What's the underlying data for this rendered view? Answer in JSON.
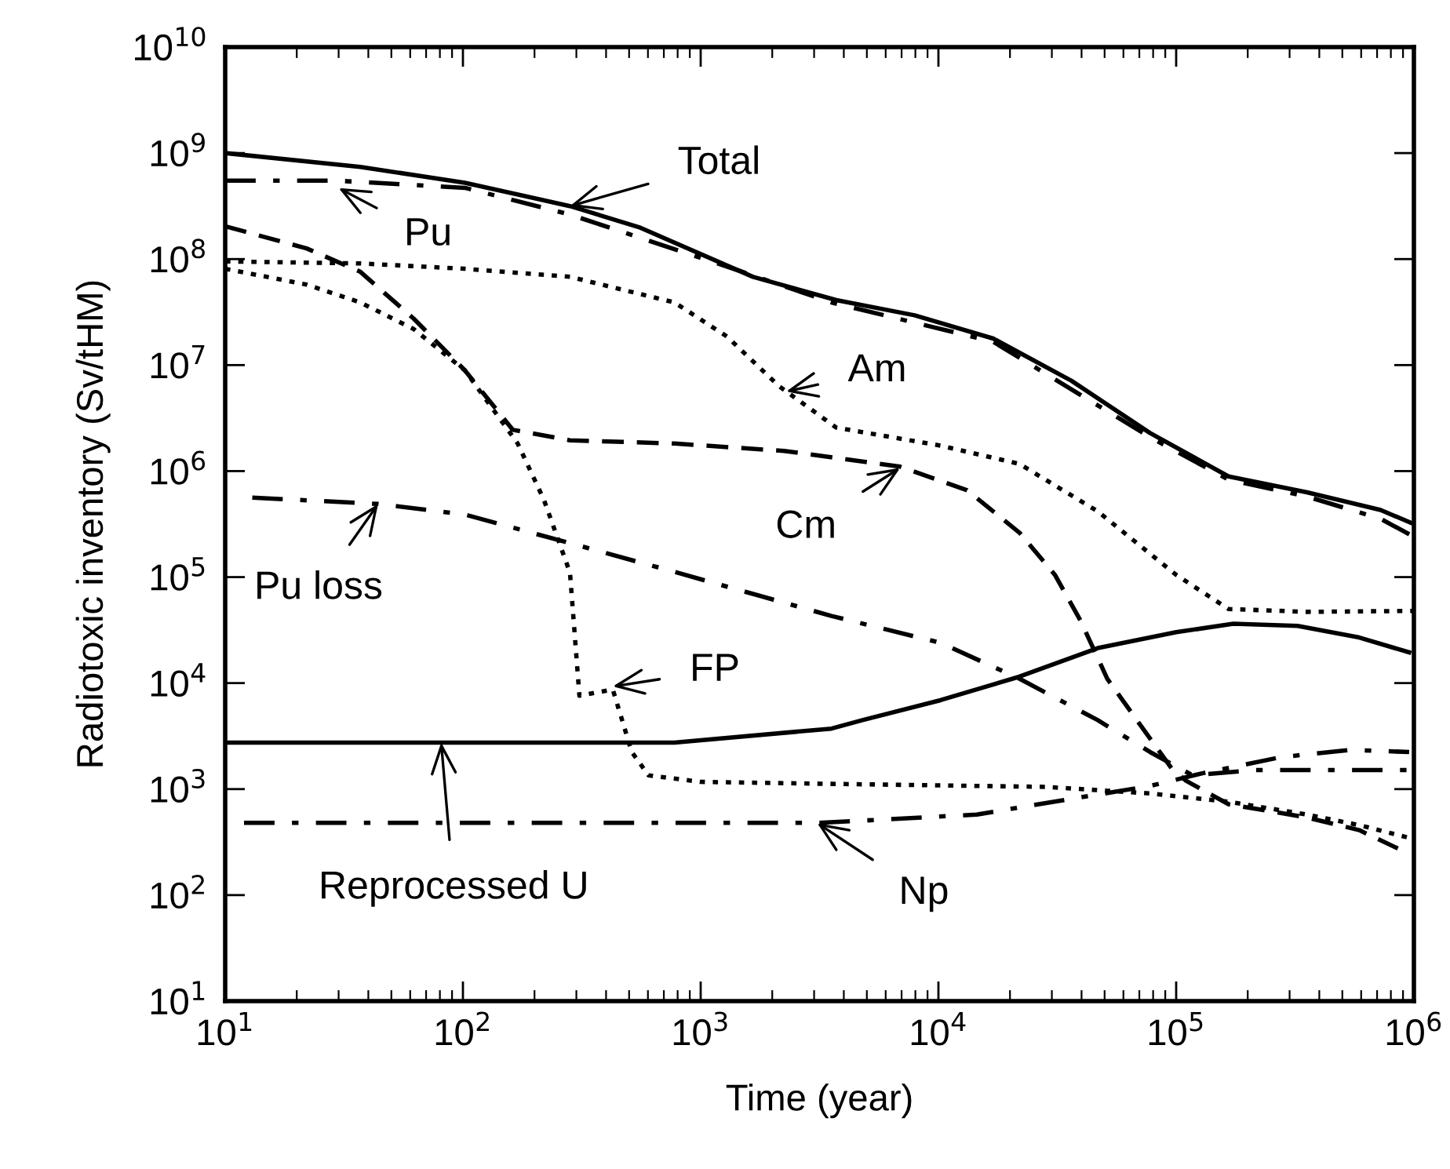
{
  "chart_data": {
    "type": "line",
    "xlabel": "Time (year)",
    "ylabel": "Radiotoxic inventory (Sv/tHM)",
    "log": "xy",
    "grid": false,
    "legend": false,
    "marker": "none",
    "xlim": [
      10,
      1000000
    ],
    "ylim": [
      10,
      10000000000
    ],
    "xticks": [
      {
        "value": 10,
        "label": "10$^{1}$"
      },
      {
        "value": 100,
        "label": "10$^{2}$"
      },
      {
        "value": 1000,
        "label": "10$^{3}$"
      },
      {
        "value": 10000,
        "label": "10$^{4}$"
      },
      {
        "value": 100000,
        "label": "10$^{5}$"
      },
      {
        "value": 1000000,
        "label": "10$^{6}$"
      }
    ],
    "yticks": [
      {
        "value": 10,
        "label": "10$^{1}$"
      },
      {
        "value": 100,
        "label": "10$^{2}$"
      },
      {
        "value": 1000,
        "label": "10$^{3}$"
      },
      {
        "value": 10000,
        "label": "10$^{4}$"
      },
      {
        "value": 100000,
        "label": "10$^{5}$"
      },
      {
        "value": 1000000,
        "label": "10$^{6}$"
      },
      {
        "value": 10000000,
        "label": "10$^{7}$"
      },
      {
        "value": 100000000,
        "label": "10$^{8}$"
      },
      {
        "value": 1000000000,
        "label": "10$^{9}$"
      },
      {
        "value": 10000000000,
        "label": "10$^{10}$"
      }
    ],
    "series": [
      {
        "color": "#000000",
        "line_style": "solid",
        "x": [
          10,
          37,
          102,
          282,
          550,
          1660,
          3720,
          7940,
          17000,
          36300,
          77600,
          166000,
          355000,
          724000,
          1000000
        ],
        "values": [
          1000000000,
          740000000,
          525000000,
          316000000,
          200000000,
          68000000,
          41000000,
          29500000,
          17800000,
          7100000,
          2290000,
          890000,
          630000,
          430000,
          316000
        ]
      },
      {
        "color": "#000000",
        "line_style": "dashdot",
        "x": [
          10,
          29,
          102,
          282,
          1290,
          3550,
          17000,
          77600,
          166000,
          355000,
          724000,
          1000000
        ],
        "values": [
          550000000,
          550000000,
          470000000,
          263000000,
          85000000,
          39000000,
          16600000,
          2090000,
          830000,
          575000,
          355000,
          240000
        ]
      },
      {
        "color": "#000000",
        "line_style": "dashed",
        "x": [
          10,
          22,
          37,
          62,
          102,
          162,
          282,
          776,
          2240,
          6900,
          13200,
          21900,
          30900,
          39800,
          51300,
          70800,
          95500,
          110000,
          166000,
          355000,
          589000,
          955000
        ],
        "values": [
          204000000,
          126000000,
          76000000,
          27500000,
          8900000,
          2450000,
          1950000,
          1820000,
          1550000,
          1100000,
          660000,
          263000,
          105000,
          38000,
          11000,
          4000,
          1580,
          1200,
          720,
          540,
          410,
          245
        ]
      },
      {
        "color": "#000000",
        "line_style": "dotted",
        "x": [
          10,
          37,
          102,
          282,
          776,
          1290,
          2140,
          3720,
          10200,
          21900,
          46800,
          100000,
          166000,
          355000,
          1000000
        ],
        "values": [
          95000000,
          91000000,
          81000000,
          68000000,
          39000000,
          18600000,
          6300000,
          2570000,
          1740000,
          1170000,
          417000,
          105000,
          50000,
          47000,
          48000
        ]
      },
      {
        "color": "#000000",
        "line_style": "dotted",
        "x": [
          10,
          22,
          37,
          62,
          102,
          170,
          219,
          282,
          309,
          427,
          513,
          603,
          1000,
          3550,
          28200,
          77600,
          166000,
          355000,
          589000,
          955000
        ],
        "values": [
          81000000,
          57500000,
          39000000,
          21900000,
          8900000,
          1820000,
          537000,
          110000,
          7600,
          8700,
          2240,
          1350,
          1170,
          1120,
          1050,
          910,
          760,
          575,
          457,
          347
        ]
      },
      {
        "color": "#000000",
        "line_style": "dashdot",
        "x": [
          13,
          44,
          102,
          282,
          776,
          3550,
          10200,
          21900,
          46800,
          77600,
          117000,
          214000,
          1000000
        ],
        "values": [
          562000,
          490000,
          389000,
          209000,
          112000,
          43000,
          24000,
          11000,
          4470,
          2240,
          1350,
          1510,
          1510
        ]
      },
      {
        "color": "#000000",
        "line_style": "solid",
        "x": [
          10,
          776,
          3550,
          4790,
          10200,
          21900,
          46800,
          100000,
          174000,
          324000,
          589000,
          955000
        ],
        "values": [
          2750,
          2750,
          3720,
          4470,
          6900,
          11500,
          21400,
          30200,
          36300,
          34700,
          26900,
          19500
        ]
      },
      {
        "color": "#000000",
        "line_style": "dashdot",
        "x": [
          12,
          3160,
          14500,
          36300,
          77600,
          129000,
          275000,
          537000,
          955000
        ],
        "values": [
          480,
          480,
          575,
          810,
          1070,
          1410,
          2000,
          2340,
          2240
        ]
      }
    ],
    "annotations": [
      {
        "text": "Total",
        "x": 282,
        "y": 316000000
      },
      {
        "text": "Pu",
        "x": 30,
        "y": 468000000
      },
      {
        "text": "Am",
        "x": 2290,
        "y": 5620000
      },
      {
        "text": "Cm",
        "x": 6900,
        "y": 1070000
      },
      {
        "text": "Pu loss",
        "x": 44,
        "y": 490000
      },
      {
        "text": "FP",
        "x": 427,
        "y": 9300
      },
      {
        "text": "Reprocessed U",
        "x": 81,
        "y": 2750
      },
      {
        "text": "Np",
        "x": 3090,
        "y": 479
      }
    ]
  }
}
